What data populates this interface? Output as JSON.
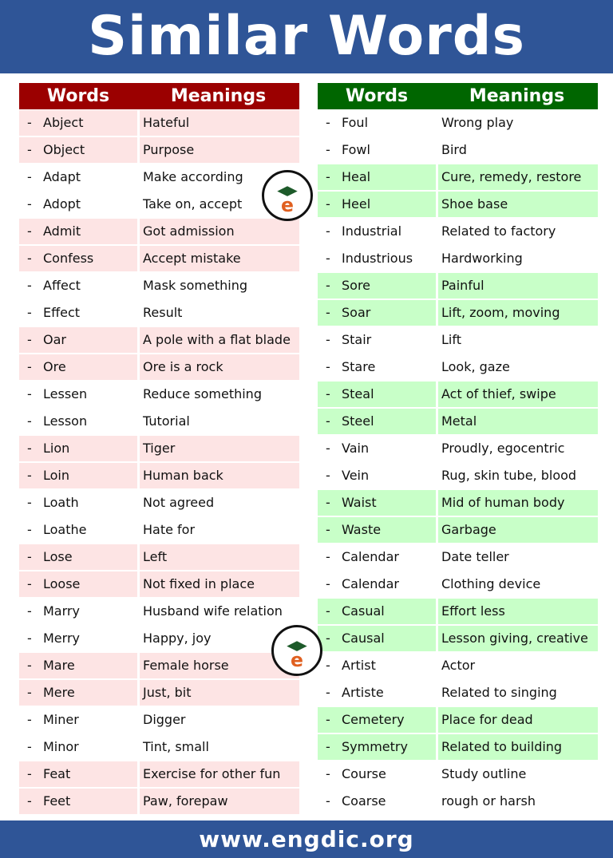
{
  "title": "Similar Words",
  "footer": "www.engdic.org",
  "logo_text": "www.EngDic.org",
  "colors": {
    "banner": "#2f5597",
    "left_header": "#9b0000",
    "left_shade": "#fde4e4",
    "right_header": "#006600",
    "right_shade": "#c8ffc8"
  },
  "left": {
    "headers": [
      "Words",
      "Meanings"
    ],
    "rows": [
      [
        "Abject",
        "Hateful"
      ],
      [
        "Object",
        "Purpose"
      ],
      [
        "Adapt",
        "Make according"
      ],
      [
        "Adopt",
        "Take on, accept"
      ],
      [
        "Admit",
        "Got admission"
      ],
      [
        "Confess",
        "Accept mistake"
      ],
      [
        "Affect",
        "Mask something"
      ],
      [
        "Effect",
        "Result"
      ],
      [
        "Oar",
        "A pole with a flat blade"
      ],
      [
        "Ore",
        "Ore is a rock"
      ],
      [
        "Lessen",
        "Reduce something"
      ],
      [
        "Lesson",
        "Tutorial"
      ],
      [
        "Lion",
        "Tiger"
      ],
      [
        "Loin",
        "Human back"
      ],
      [
        "Loath",
        "Not agreed"
      ],
      [
        "Loathe",
        "Hate for"
      ],
      [
        "Lose",
        "Left"
      ],
      [
        "Loose",
        "Not fixed in place"
      ],
      [
        "Marry",
        "Husband wife relation"
      ],
      [
        "Merry",
        "Happy, joy"
      ],
      [
        "Mare",
        "Female horse"
      ],
      [
        "Mere",
        "Just, bit"
      ],
      [
        "Miner",
        "Digger"
      ],
      [
        "Minor",
        "Tint, small"
      ],
      [
        "Feat",
        "Exercise for other fun"
      ],
      [
        "Feet",
        "Paw, forepaw"
      ]
    ]
  },
  "right": {
    "headers": [
      "Words",
      "Meanings"
    ],
    "rows": [
      [
        "Foul",
        "Wrong play"
      ],
      [
        "Fowl",
        "Bird"
      ],
      [
        "Heal",
        "Cure, remedy, restore"
      ],
      [
        "Heel",
        "Shoe base"
      ],
      [
        "Industrial",
        "Related to factory"
      ],
      [
        "Industrious",
        "Hardworking"
      ],
      [
        "Sore",
        "Painful"
      ],
      [
        "Soar",
        "Lift, zoom, moving"
      ],
      [
        "Stair",
        "Lift"
      ],
      [
        "Stare",
        "Look, gaze"
      ],
      [
        "Steal",
        "Act of thief, swipe"
      ],
      [
        "Steel",
        "Metal"
      ],
      [
        "Vain",
        "Proudly, egocentric"
      ],
      [
        "Vein",
        "Rug, skin tube, blood"
      ],
      [
        "Waist",
        "Mid of human body"
      ],
      [
        "Waste",
        "Garbage"
      ],
      [
        "Calendar",
        "Date teller"
      ],
      [
        "Calendar",
        "Clothing device"
      ],
      [
        "Casual",
        "Effort less"
      ],
      [
        "Causal",
        "Lesson giving, creative"
      ],
      [
        "Artist",
        "Actor"
      ],
      [
        "Artiste",
        "Related to singing"
      ],
      [
        "Cemetery",
        "Place for dead"
      ],
      [
        "Symmetry",
        "Related to building"
      ],
      [
        "Course",
        "Study outline"
      ],
      [
        "Coarse",
        "rough or harsh"
      ]
    ]
  }
}
